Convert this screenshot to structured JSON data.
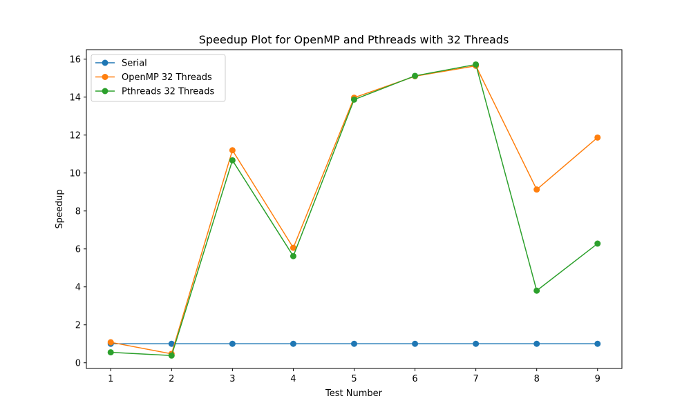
{
  "chart_data": {
    "type": "line",
    "title": "Speedup Plot for OpenMP and Pthreads with 32 Threads",
    "xlabel": "Test Number",
    "ylabel": "Speedup",
    "x": [
      1,
      2,
      3,
      4,
      5,
      6,
      7,
      8,
      9
    ],
    "xlim": [
      0.6,
      9.4
    ],
    "ylim": [
      -0.3,
      16.5
    ],
    "xticks": [
      1,
      2,
      3,
      4,
      5,
      6,
      7,
      8,
      9
    ],
    "yticks": [
      0,
      2,
      4,
      6,
      8,
      10,
      12,
      14,
      16
    ],
    "grid": false,
    "legend_position": "top-left",
    "series": [
      {
        "name": "Serial",
        "color": "#1f77b4",
        "values": [
          1,
          1,
          1,
          1,
          1,
          1,
          1,
          1,
          1
        ]
      },
      {
        "name": "OpenMP 32 Threads",
        "color": "#ff7f0e",
        "values": [
          1.08,
          0.47,
          11.2,
          6.06,
          13.97,
          15.1,
          15.65,
          9.13,
          11.87
        ]
      },
      {
        "name": "Pthreads 32 Threads",
        "color": "#2ca02c",
        "values": [
          0.55,
          0.38,
          10.67,
          5.62,
          13.87,
          15.12,
          15.72,
          3.8,
          6.28
        ]
      }
    ]
  }
}
